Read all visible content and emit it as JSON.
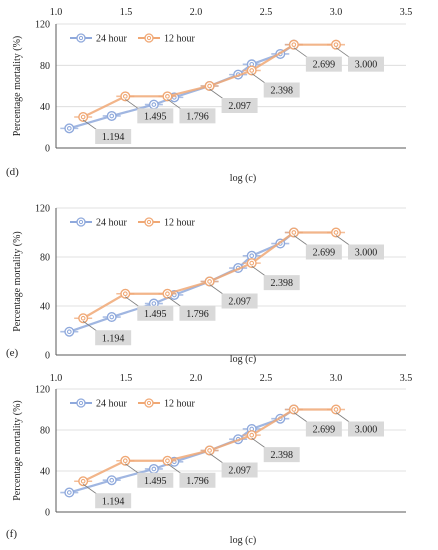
{
  "chart_data": [
    {
      "type": "line",
      "panel_label": "(d)",
      "xlabel": "log (c)",
      "ylabel": "Percentage mortality (%)",
      "xlim": [
        1.0,
        3.5
      ],
      "ylim": [
        0,
        120
      ],
      "xticks": [
        "1.0",
        "1.5",
        "2.0",
        "2.5",
        "3.0",
        "3.5"
      ],
      "yticks": [
        "0",
        "40",
        "80",
        "120"
      ],
      "legend_position": "top-left",
      "series": [
        {
          "name": "24 hour",
          "color": "#8fa9dc",
          "x": [
            1.095,
            1.398,
            1.699,
            1.845,
            2.097,
            2.301,
            2.398,
            2.602,
            2.699
          ],
          "y": [
            19,
            31,
            42,
            49,
            60,
            71,
            81,
            91,
            100
          ]
        },
        {
          "name": "12 hour",
          "color": "#f0a875",
          "x": [
            1.194,
            1.495,
            1.796,
            2.097,
            2.398,
            2.699,
            3.0
          ],
          "y": [
            30,
            50,
            50,
            60,
            75,
            100,
            100
          ]
        }
      ],
      "data_labels": [
        {
          "x": 1.194,
          "y": 30,
          "text": "1.194"
        },
        {
          "x": 1.495,
          "y": 50,
          "text": "1.495"
        },
        {
          "x": 1.796,
          "y": 50,
          "text": "1.796"
        },
        {
          "x": 2.097,
          "y": 60,
          "text": "2.097"
        },
        {
          "x": 2.398,
          "y": 75,
          "text": "2.398"
        },
        {
          "x": 2.699,
          "y": 100,
          "text": "2.699"
        },
        {
          "x": 3.0,
          "y": 100,
          "text": "3.000"
        }
      ]
    },
    {
      "type": "line",
      "panel_label": "(e)",
      "xlabel": "log (c)",
      "ylabel": "Percentage mortality (%)",
      "xlim": [
        1.0,
        3.5
      ],
      "ylim": [
        0,
        120
      ],
      "xticks": [
        "1.0",
        "1.5",
        "2.0",
        "2.5",
        "3.0",
        "3.5"
      ],
      "yticks": [
        "0",
        "40",
        "80",
        "120"
      ],
      "legend_position": "top-left",
      "series": [
        {
          "name": "24 hour",
          "color": "#8fa9dc",
          "x": [
            1.095,
            1.398,
            1.699,
            1.845,
            2.097,
            2.301,
            2.398,
            2.602,
            2.699
          ],
          "y": [
            19,
            31,
            42,
            49,
            60,
            71,
            81,
            91,
            100
          ]
        },
        {
          "name": "12 hour",
          "color": "#f0a875",
          "x": [
            1.194,
            1.495,
            1.796,
            2.097,
            2.398,
            2.699,
            3.0
          ],
          "y": [
            30,
            50,
            50,
            60,
            75,
            100,
            100
          ]
        }
      ],
      "data_labels": [
        {
          "x": 1.194,
          "y": 30,
          "text": "1.194"
        },
        {
          "x": 1.495,
          "y": 50,
          "text": "1.495"
        },
        {
          "x": 1.796,
          "y": 50,
          "text": "1.796"
        },
        {
          "x": 2.097,
          "y": 60,
          "text": "2.097"
        },
        {
          "x": 2.398,
          "y": 75,
          "text": "2.398"
        },
        {
          "x": 2.699,
          "y": 100,
          "text": "2.699"
        },
        {
          "x": 3.0,
          "y": 100,
          "text": "3.000"
        }
      ]
    },
    {
      "type": "line",
      "panel_label": "(f)",
      "xlabel": "log (c)",
      "ylabel": "Percentage mortality (%)",
      "xlim": [
        1.0,
        3.5
      ],
      "ylim": [
        0,
        120
      ],
      "xticks": [
        "1.0",
        "1.5",
        "2.0",
        "2.5",
        "3.0",
        "3.5"
      ],
      "yticks": [
        "0",
        "40",
        "80",
        "120"
      ],
      "legend_position": "top-left",
      "series": [
        {
          "name": "24 hour",
          "color": "#8fa9dc",
          "x": [
            1.095,
            1.398,
            1.699,
            1.845,
            2.097,
            2.301,
            2.398,
            2.602,
            2.699
          ],
          "y": [
            19,
            31,
            42,
            49,
            60,
            71,
            81,
            91,
            100
          ]
        },
        {
          "name": "12 hour",
          "color": "#f0a875",
          "x": [
            1.194,
            1.495,
            1.796,
            2.097,
            2.398,
            2.699,
            3.0
          ],
          "y": [
            30,
            50,
            50,
            60,
            75,
            100,
            100
          ]
        }
      ],
      "data_labels": [
        {
          "x": 1.194,
          "y": 30,
          "text": "1.194"
        },
        {
          "x": 1.495,
          "y": 50,
          "text": "1.495"
        },
        {
          "x": 1.796,
          "y": 50,
          "text": "1.796"
        },
        {
          "x": 2.097,
          "y": 60,
          "text": "2.097"
        },
        {
          "x": 2.398,
          "y": 75,
          "text": "2.398"
        },
        {
          "x": 2.699,
          "y": 100,
          "text": "2.699"
        },
        {
          "x": 3.0,
          "y": 100,
          "text": "3.000"
        }
      ]
    }
  ]
}
